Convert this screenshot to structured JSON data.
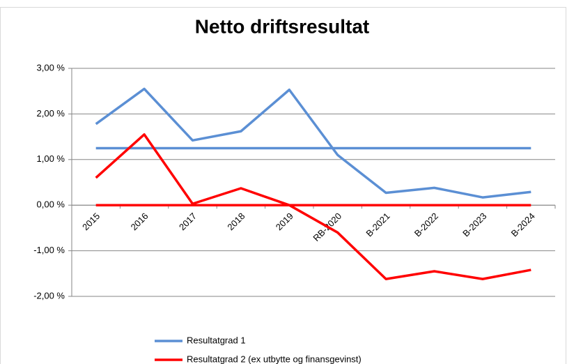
{
  "chart_data": {
    "type": "line",
    "title": "Netto driftsresultat",
    "categories": [
      "2015",
      "2016",
      "2017",
      "2018",
      "2019",
      "RB-2020",
      "B-2021",
      "B-2022",
      "B-2023",
      "B-2024"
    ],
    "series": [
      {
        "name": "Resultatgrad 1",
        "color": "#5b8fd4",
        "values": [
          1.78,
          2.55,
          1.42,
          1.62,
          2.53,
          1.1,
          0.27,
          0.38,
          0.17,
          0.29
        ]
      },
      {
        "name": "Resultatgrad 2 (ex utbytte og finansgevinst)",
        "color": "#ff0000",
        "values": [
          0.6,
          1.55,
          0.03,
          0.37,
          0.0,
          -0.6,
          -1.62,
          -1.45,
          -1.62,
          -1.42
        ]
      }
    ],
    "reference_lines": [
      {
        "value": 1.25,
        "color": "#5b8fd4"
      },
      {
        "value": 0,
        "color": "#ff0000"
      }
    ],
    "ylim": [
      -2,
      3
    ],
    "yticks": [
      {
        "value": -2,
        "label": "-2,00 %"
      },
      {
        "value": -1,
        "label": "-1,00 %"
      },
      {
        "value": 0,
        "label": "0,00 %"
      },
      {
        "value": 1,
        "label": "1,00 %"
      },
      {
        "value": 2,
        "label": "2,00 %"
      },
      {
        "value": 3,
        "label": "3,00 %"
      }
    ],
    "grid": true,
    "legend": "bottom"
  }
}
